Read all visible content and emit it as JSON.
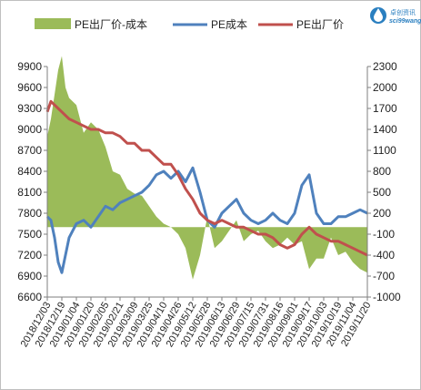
{
  "logo": {
    "cn": "卓创资讯",
    "en": "sci99wang",
    "icon": "water-drop-logo-icon"
  },
  "colors": {
    "spread": "#9bbb59",
    "cost": "#4f81bd",
    "price": "#c0504d"
  },
  "chart_data": {
    "type": "line",
    "legend": [
      "PE出厂价-成本",
      "PE成本",
      "PE出厂价"
    ],
    "legend_position": "top",
    "grid": false,
    "left_axis": {
      "ticks": [
        9900,
        9600,
        9300,
        9000,
        8700,
        8400,
        8100,
        7800,
        7500,
        7200,
        6900,
        6600
      ],
      "range": [
        6600,
        9900
      ]
    },
    "right_axis": {
      "ticks": [
        2300,
        2000,
        1700,
        1400,
        1100,
        800,
        500,
        200,
        -100,
        -400,
        -700,
        -1000
      ],
      "range": [
        -1000,
        2300
      ]
    },
    "x_ticks": [
      "2018/12/03",
      "2018/12/19",
      "2019/01/04",
      "2019/01/20",
      "2019/02/05",
      "2019/02/21",
      "2019/03/09",
      "2019/03/25",
      "2019/04/10",
      "2019/04/26",
      "2019/05/12",
      "2019/05/28",
      "2019/06/13",
      "2019/06/29",
      "2019/07/15",
      "2019/07/31",
      "2019/08/16",
      "2019/09/01",
      "2019/09/17",
      "2019/10/03",
      "2019/10/19",
      "2019/11/04",
      "2019/11/20"
    ],
    "series": [
      {
        "name": "PE出厂价-成本",
        "type": "area",
        "axis": "right",
        "x": [
          "2018/12/03",
          "2018/12/07",
          "2018/12/11",
          "2018/12/15",
          "2018/12/19",
          "2018/12/23",
          "2018/12/27",
          "2019/01/04",
          "2019/01/12",
          "2019/01/20",
          "2019/01/28",
          "2019/02/05",
          "2019/02/13",
          "2019/02/21",
          "2019/03/01",
          "2019/03/09",
          "2019/03/17",
          "2019/03/25",
          "2019/04/02",
          "2019/04/10",
          "2019/04/18",
          "2019/04/26",
          "2019/05/04",
          "2019/05/12",
          "2019/05/20",
          "2019/05/28",
          "2019/06/05",
          "2019/06/13",
          "2019/06/21",
          "2019/06/29",
          "2019/07/07",
          "2019/07/15",
          "2019/07/23",
          "2019/07/31",
          "2019/08/08",
          "2019/08/16",
          "2019/08/24",
          "2019/09/01",
          "2019/09/09",
          "2019/09/17",
          "2019/09/25",
          "2019/10/03",
          "2019/10/11",
          "2019/10/19",
          "2019/10/27",
          "2019/11/04",
          "2019/11/12",
          "2019/11/20"
        ],
        "values": [
          1300,
          1550,
          1900,
          2250,
          2450,
          2000,
          1850,
          1750,
          1350,
          1500,
          1400,
          1150,
          800,
          750,
          550,
          480,
          450,
          300,
          150,
          50,
          0,
          -100,
          -300,
          -750,
          -400,
          150,
          -300,
          -200,
          -50,
          100,
          -200,
          -100,
          -50,
          -200,
          -300,
          -250,
          -150,
          -250,
          -200,
          -600,
          -450,
          -450,
          -150,
          -400,
          -350,
          -500,
          -600,
          -650
        ]
      },
      {
        "name": "PE成本",
        "type": "line",
        "axis": "left",
        "x": [
          "2018/12/03",
          "2018/12/07",
          "2018/12/11",
          "2018/12/15",
          "2018/12/19",
          "2018/12/23",
          "2018/12/27",
          "2019/01/04",
          "2019/01/12",
          "2019/01/20",
          "2019/01/28",
          "2019/02/05",
          "2019/02/13",
          "2019/02/21",
          "2019/03/01",
          "2019/03/09",
          "2019/03/17",
          "2019/03/25",
          "2019/04/02",
          "2019/04/10",
          "2019/04/18",
          "2019/04/26",
          "2019/05/04",
          "2019/05/12",
          "2019/05/20",
          "2019/05/28",
          "2019/06/05",
          "2019/06/13",
          "2019/06/21",
          "2019/06/29",
          "2019/07/07",
          "2019/07/15",
          "2019/07/23",
          "2019/07/31",
          "2019/08/08",
          "2019/08/16",
          "2019/08/24",
          "2019/09/01",
          "2019/09/09",
          "2019/09/17",
          "2019/09/25",
          "2019/10/03",
          "2019/10/11",
          "2019/10/19",
          "2019/10/27",
          "2019/11/04",
          "2019/11/12",
          "2019/11/20"
        ],
        "values": [
          7750,
          7700,
          7450,
          7100,
          6950,
          7200,
          7450,
          7650,
          7700,
          7600,
          7750,
          7900,
          7850,
          7950,
          8000,
          8050,
          8100,
          8200,
          8350,
          8400,
          8300,
          8400,
          8250,
          8450,
          8100,
          7700,
          7600,
          7800,
          7900,
          8000,
          7800,
          7700,
          7650,
          7700,
          7800,
          7700,
          7650,
          7800,
          8200,
          8350,
          7800,
          7650,
          7650,
          7750,
          7750,
          7800,
          7850,
          7800
        ]
      },
      {
        "name": "PE出厂价",
        "type": "line",
        "axis": "left",
        "x": [
          "2018/12/03",
          "2018/12/07",
          "2018/12/11",
          "2018/12/15",
          "2018/12/19",
          "2018/12/23",
          "2018/12/27",
          "2019/01/04",
          "2019/01/12",
          "2019/01/20",
          "2019/01/28",
          "2019/02/05",
          "2019/02/13",
          "2019/02/21",
          "2019/03/01",
          "2019/03/09",
          "2019/03/17",
          "2019/03/25",
          "2019/04/02",
          "2019/04/10",
          "2019/04/18",
          "2019/04/26",
          "2019/05/04",
          "2019/05/12",
          "2019/05/20",
          "2019/05/28",
          "2019/06/05",
          "2019/06/13",
          "2019/06/21",
          "2019/06/29",
          "2019/07/07",
          "2019/07/15",
          "2019/07/23",
          "2019/07/31",
          "2019/08/08",
          "2019/08/16",
          "2019/08/24",
          "2019/09/01",
          "2019/09/09",
          "2019/09/17",
          "2019/09/25",
          "2019/10/03",
          "2019/10/11",
          "2019/10/19",
          "2019/10/27",
          "2019/11/04",
          "2019/11/12",
          "2019/11/20"
        ],
        "values": [
          9250,
          9400,
          9350,
          9300,
          9250,
          9200,
          9150,
          9100,
          9050,
          9000,
          9000,
          8950,
          8950,
          8900,
          8800,
          8800,
          8700,
          8700,
          8600,
          8500,
          8500,
          8350,
          8150,
          8000,
          7800,
          7700,
          7650,
          7700,
          7650,
          7600,
          7600,
          7550,
          7500,
          7500,
          7450,
          7350,
          7300,
          7350,
          7500,
          7600,
          7500,
          7450,
          7400,
          7400,
          7350,
          7300,
          7250,
          7200
        ]
      }
    ]
  }
}
